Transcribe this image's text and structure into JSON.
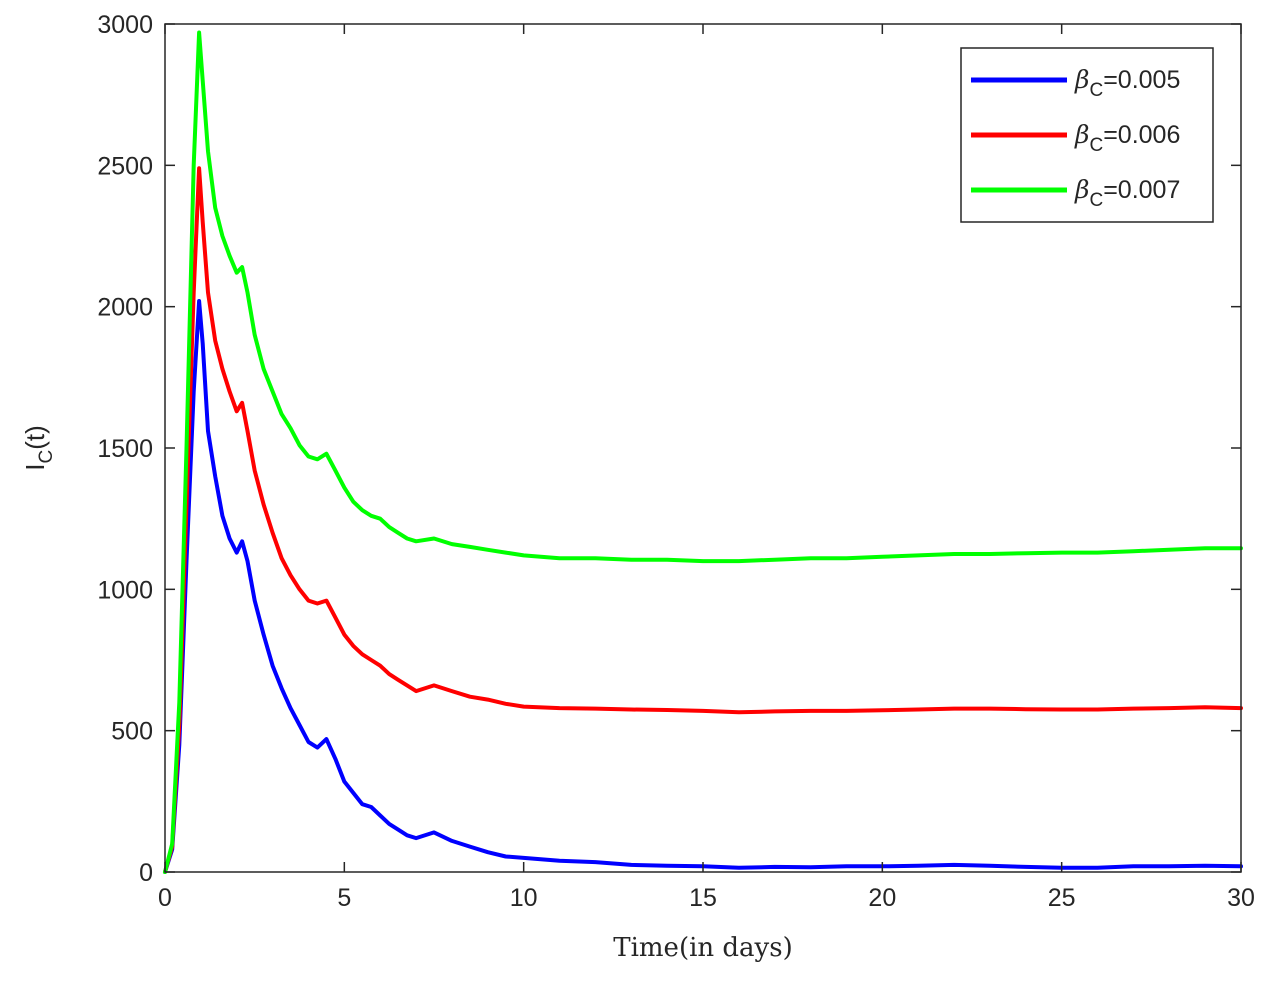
{
  "chart_data": {
    "type": "line",
    "xlabel": "Time(in days)",
    "ylabel": {
      "base": "I",
      "sub": "C",
      "suffix": "(t)"
    },
    "xlim": [
      0,
      30
    ],
    "ylim": [
      0,
      3000
    ],
    "xticks": [
      0,
      5,
      10,
      15,
      20,
      25,
      30
    ],
    "yticks": [
      0,
      500,
      1000,
      1500,
      2000,
      2500,
      3000
    ],
    "grid": false,
    "legend_position": "top-right",
    "series": [
      {
        "name": "βC=0.005",
        "legend": {
          "symbol": "β",
          "sub": "C",
          "value": "=0.005"
        },
        "color": "#0000ff",
        "x": [
          0,
          0.2,
          0.4,
          0.6,
          0.8,
          0.95,
          1.05,
          1.2,
          1.4,
          1.6,
          1.8,
          2.0,
          2.15,
          2.3,
          2.5,
          2.75,
          3.0,
          3.25,
          3.5,
          3.75,
          4.0,
          4.25,
          4.5,
          4.75,
          5.0,
          5.25,
          5.5,
          5.75,
          6.0,
          6.25,
          6.5,
          6.75,
          7.0,
          7.5,
          8.0,
          8.5,
          9.0,
          9.5,
          10.0,
          11,
          12,
          13,
          14,
          15,
          16,
          17,
          18,
          19,
          20,
          21,
          22,
          23,
          24,
          25,
          26,
          27,
          28,
          29,
          30
        ],
        "y": [
          0,
          80,
          450,
          1100,
          1700,
          2020,
          1870,
          1560,
          1400,
          1260,
          1180,
          1130,
          1170,
          1100,
          960,
          840,
          730,
          650,
          580,
          520,
          460,
          440,
          470,
          400,
          320,
          280,
          240,
          230,
          200,
          170,
          150,
          130,
          120,
          140,
          110,
          90,
          70,
          55,
          50,
          40,
          35,
          25,
          22,
          20,
          15,
          18,
          17,
          20,
          20,
          22,
          25,
          22,
          18,
          15,
          15,
          20,
          20,
          22,
          20
        ]
      },
      {
        "name": "βC=0.006",
        "legend": {
          "symbol": "β",
          "sub": "C",
          "value": "=0.006"
        },
        "color": "#ff0000",
        "x": [
          0,
          0.2,
          0.4,
          0.6,
          0.8,
          0.95,
          1.05,
          1.2,
          1.4,
          1.6,
          1.8,
          2.0,
          2.15,
          2.3,
          2.5,
          2.75,
          3.0,
          3.25,
          3.5,
          3.75,
          4.0,
          4.25,
          4.5,
          4.75,
          5.0,
          5.25,
          5.5,
          5.75,
          6.0,
          6.25,
          6.5,
          6.75,
          7.0,
          7.5,
          8.0,
          8.5,
          9.0,
          9.5,
          10.0,
          11,
          12,
          13,
          14,
          15,
          16,
          17,
          18,
          19,
          20,
          21,
          22,
          23,
          24,
          25,
          26,
          27,
          28,
          29,
          30
        ],
        "y": [
          0,
          90,
          520,
          1300,
          2050,
          2490,
          2300,
          2050,
          1880,
          1780,
          1700,
          1630,
          1660,
          1560,
          1420,
          1300,
          1200,
          1110,
          1050,
          1000,
          960,
          950,
          960,
          900,
          840,
          800,
          770,
          750,
          730,
          700,
          680,
          660,
          640,
          660,
          640,
          620,
          610,
          595,
          585,
          580,
          578,
          575,
          573,
          570,
          565,
          568,
          570,
          570,
          572,
          575,
          578,
          578,
          576,
          575,
          575,
          578,
          580,
          583,
          580
        ]
      },
      {
        "name": "βC=0.007",
        "legend": {
          "symbol": "β",
          "sub": "C",
          "value": "=0.007"
        },
        "color": "#00ff00",
        "x": [
          0,
          0.2,
          0.4,
          0.6,
          0.8,
          0.95,
          1.05,
          1.2,
          1.4,
          1.6,
          1.8,
          2.0,
          2.15,
          2.3,
          2.5,
          2.75,
          3.0,
          3.25,
          3.5,
          3.75,
          4.0,
          4.25,
          4.5,
          4.75,
          5.0,
          5.25,
          5.5,
          5.75,
          6.0,
          6.25,
          6.5,
          6.75,
          7.0,
          7.5,
          8.0,
          8.5,
          9.0,
          9.5,
          10.0,
          11,
          12,
          13,
          14,
          15,
          16,
          17,
          18,
          19,
          20,
          21,
          22,
          23,
          24,
          25,
          26,
          27,
          28,
          29,
          30
        ],
        "y": [
          0,
          100,
          600,
          1500,
          2500,
          2970,
          2800,
          2550,
          2350,
          2250,
          2180,
          2120,
          2140,
          2050,
          1900,
          1780,
          1700,
          1620,
          1570,
          1510,
          1470,
          1460,
          1480,
          1420,
          1360,
          1310,
          1280,
          1260,
          1250,
          1220,
          1200,
          1180,
          1170,
          1180,
          1160,
          1150,
          1140,
          1130,
          1120,
          1110,
          1110,
          1105,
          1105,
          1100,
          1100,
          1105,
          1110,
          1110,
          1115,
          1120,
          1125,
          1125,
          1128,
          1130,
          1130,
          1135,
          1140,
          1145,
          1145
        ]
      }
    ]
  }
}
